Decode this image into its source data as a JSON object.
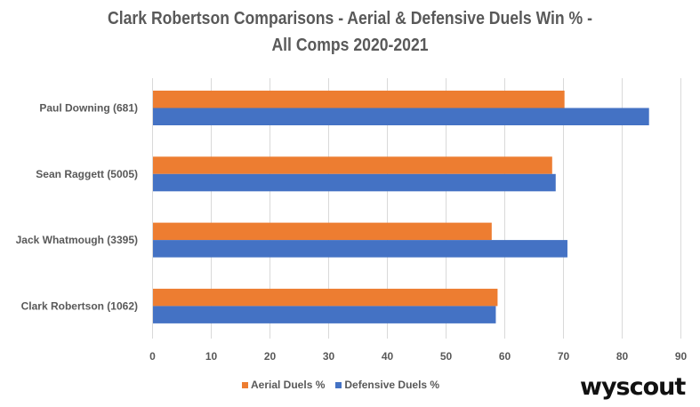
{
  "chart_data": {
    "type": "bar",
    "orientation": "horizontal",
    "title_lines": [
      "Clark Robertson Comparisons - Aerial & Defensive Duels Win % -",
      "All Comps 2020-2021"
    ],
    "categories": [
      "Paul Downing (681)",
      "Sean Raggett (5005)",
      "Jack Whatmough (3395)",
      "Clark Robertson (1062)"
    ],
    "series": [
      {
        "name": "Aerial Duels %",
        "color": "#ED7D31",
        "values": [
          70.1,
          68.0,
          57.7,
          58.7
        ]
      },
      {
        "name": "Defensive Duels %",
        "color": "#4472C4",
        "values": [
          84.5,
          68.6,
          70.6,
          58.4
        ]
      }
    ],
    "xlabel": "",
    "ylabel": "",
    "xlim": [
      0,
      90
    ],
    "xticks": [
      0,
      10,
      20,
      30,
      40,
      50,
      60,
      70,
      80,
      90
    ],
    "grid": true,
    "legend_position": "bottom"
  },
  "branding": {
    "logo_text": "wyscout"
  }
}
